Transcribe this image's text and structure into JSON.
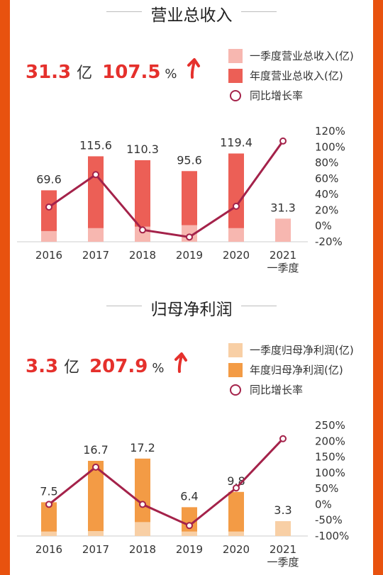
{
  "sections": [
    {
      "title": "营业总收入",
      "value": "31.3",
      "value_unit": "亿",
      "growth": "107.5",
      "growth_unit": "%",
      "arrow": "up-arrow",
      "legend": [
        "一季度营业总收入(亿)",
        "年度营业总收入(亿)",
        "同比增长率"
      ]
    },
    {
      "title": "归母净利润",
      "value": "3.3",
      "value_unit": "亿",
      "growth": "207.9",
      "growth_unit": "%",
      "arrow": "up-arrow",
      "legend": [
        "一季度归母净利润(亿)",
        "年度归母净利润(亿)",
        "同比增长率"
      ]
    }
  ],
  "chart_data": [
    {
      "type": "bar",
      "categories": [
        "2016",
        "2017",
        "2018",
        "2019",
        "2020",
        "2021\n一季度"
      ],
      "series": [
        {
          "name": "一季度营业总收入(亿)",
          "values": [
            14.5,
            18.5,
            20.5,
            22.5,
            18.5,
            31.3
          ],
          "color": "#f7b7b0"
        },
        {
          "name": "年度营业总收入(亿)",
          "values": [
            69.6,
            115.6,
            110.3,
            95.6,
            119.4,
            null
          ],
          "color": "#ec5f56",
          "labels": [
            "69.6",
            "115.6",
            "110.3",
            "95.6",
            "119.4",
            "31.3"
          ]
        },
        {
          "name": "同比增长率",
          "type": "line",
          "axis": "right",
          "values": [
            24,
            65,
            -5,
            -14,
            25,
            107.5
          ],
          "color": "#a4224a"
        }
      ],
      "left_axis": {
        "min": -20,
        "max": 140
      },
      "right_axis": {
        "min": -20,
        "max": 120,
        "ticks": [
          "120%",
          "100%",
          "80%",
          "60%",
          "40%",
          "20%",
          "0%",
          "-20%"
        ]
      }
    },
    {
      "type": "bar",
      "categories": [
        "2016",
        "2017",
        "2018",
        "2019",
        "2020",
        "2021\n一季度"
      ],
      "series": [
        {
          "name": "一季度归母净利润(亿)",
          "values": [
            1.0,
            1.1,
            3.1,
            1.0,
            1.0,
            3.3
          ],
          "color": "#f8cfa5"
        },
        {
          "name": "年度归母净利润(亿)",
          "values": [
            7.5,
            16.7,
            17.2,
            6.4,
            9.8,
            null
          ],
          "color": "#f39b45",
          "labels": [
            "7.5",
            "16.7",
            "17.2",
            "6.4",
            "9.8",
            "3.3"
          ]
        },
        {
          "name": "同比增长率",
          "type": "line",
          "axis": "right",
          "values": [
            0,
            118,
            0,
            -67,
            52,
            207.9
          ],
          "color": "#a4224a"
        }
      ],
      "left_axis": {
        "min": -3,
        "max": 23
      },
      "right_axis": {
        "min": -100,
        "max": 250,
        "ticks": [
          "250%",
          "200%",
          "150%",
          "100%",
          "50%",
          "0%",
          "-50%",
          "-100%"
        ]
      }
    }
  ]
}
